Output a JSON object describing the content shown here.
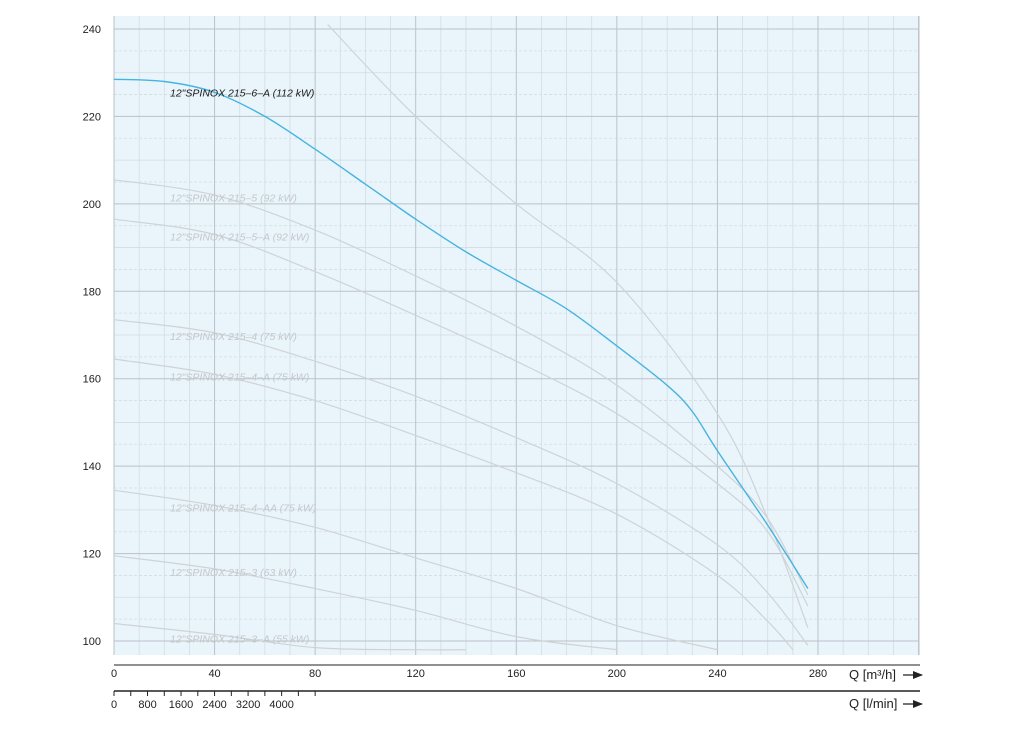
{
  "chart_data": {
    "type": "line",
    "xlabel": "Q [m³/h]",
    "xlabel_secondary": "Q [l/min]",
    "xlim": [
      0,
      320
    ],
    "ylim": [
      98,
      241
    ],
    "x_ticks": [
      0,
      40,
      80,
      120,
      160,
      200,
      240,
      280
    ],
    "x_ticks_secondary": [
      0,
      800,
      1600,
      2400,
      3200,
      4000
    ],
    "y_ticks": [
      100,
      120,
      140,
      160,
      180,
      200,
      220,
      240
    ],
    "grid": true,
    "colors": {
      "background": "#eaf4fb",
      "grid_major": "#b9c2c9",
      "grid_minor": "#d3dce3",
      "highlight": "#45b5e0",
      "faded": "#cfd3d6",
      "faded_label": "#c4c8cb"
    },
    "series": [
      {
        "name": "12\"SPINOX 215–6–A (112 kW)",
        "highlight": true,
        "x": [
          0,
          20,
          40,
          60,
          80,
          100,
          120,
          140,
          160,
          180,
          200,
          220,
          230,
          240,
          260,
          276
        ],
        "y": [
          228.5,
          228,
          225.5,
          220,
          212.5,
          204.5,
          196.5,
          189,
          182.5,
          176,
          167.5,
          158.5,
          152.5,
          143.5,
          126.5,
          112
        ]
      },
      {
        "name": "12\"SPINOX 215–5 (92 kW)",
        "highlight": false,
        "x": [
          0,
          40,
          80,
          120,
          160,
          200,
          240,
          260,
          276
        ],
        "y": [
          205.5,
          202,
          194,
          183.5,
          172,
          158.5,
          140,
          128,
          110.5
        ]
      },
      {
        "name": "12\"SPINOX 215–5–A (92 kW)",
        "highlight": false,
        "x": [
          0,
          40,
          80,
          120,
          160,
          200,
          240,
          260,
          276
        ],
        "y": [
          196.5,
          193,
          184.5,
          174.5,
          164,
          152,
          136,
          125,
          108
        ]
      },
      {
        "name": "12\"SPINOX 215–4 (75 kW)",
        "highlight": false,
        "x": [
          0,
          40,
          80,
          120,
          160,
          200,
          240,
          260,
          276
        ],
        "y": [
          173.5,
          170.5,
          164,
          156,
          146.5,
          136,
          122,
          111,
          99
        ]
      },
      {
        "name": "12\"SPINOX 215–4–A (75 kW)",
        "highlight": false,
        "x": [
          0,
          40,
          80,
          120,
          160,
          200,
          240,
          260,
          270
        ],
        "y": [
          164.5,
          161,
          155,
          147,
          138.5,
          129,
          115,
          104.5,
          98
        ]
      },
      {
        "name": "12\"SPINOX 215–4–AA (75 kW)",
        "highlight": false,
        "x": [
          0,
          40,
          80,
          120,
          160,
          200,
          240
        ],
        "y": [
          134.5,
          131,
          126,
          119,
          112,
          103.5,
          98
        ]
      },
      {
        "name": "12\"SPINOX 215–3 (63 kW)",
        "highlight": false,
        "x": [
          0,
          40,
          80,
          120,
          160,
          200
        ],
        "y": [
          119.5,
          116.5,
          112,
          107,
          101,
          98
        ]
      },
      {
        "name": "12\"SPINOX 215–3–A (55 kW)",
        "highlight": false,
        "x": [
          0,
          40,
          80,
          120,
          140
        ],
        "y": [
          104,
          101.5,
          98.5,
          98,
          98
        ]
      },
      {
        "name": "",
        "highlight": false,
        "x": [
          85,
          120,
          160,
          200,
          240,
          260,
          276
        ],
        "y": [
          241,
          220,
          200,
          182,
          152,
          128,
          103
        ]
      }
    ]
  }
}
